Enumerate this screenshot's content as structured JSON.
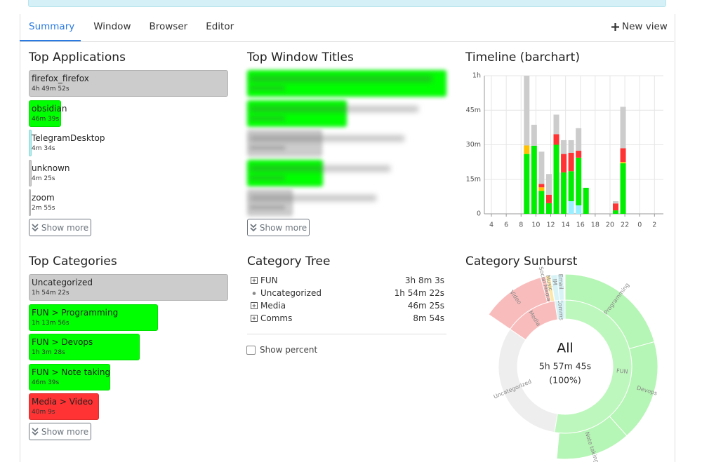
{
  "tabs": {
    "items": [
      "Summary",
      "Window",
      "Browser",
      "Editor"
    ],
    "new_view": "New view"
  },
  "top_applications": {
    "title": "Top Applications",
    "items": [
      {
        "name": "firefox_firefox",
        "duration": "4h 49m 52s",
        "minutes": 289.87,
        "color": "#cccccc"
      },
      {
        "name": "obsidian",
        "duration": "46m 39s",
        "minutes": 46.65,
        "color": "#00ff00"
      },
      {
        "name": "TelegramDesktop",
        "duration": "4m 34s",
        "minutes": 4.57,
        "color": "#aaf0f0"
      },
      {
        "name": "unknown",
        "duration": "4m 25s",
        "minutes": 4.42,
        "color": "#cccccc"
      },
      {
        "name": "zoom",
        "duration": "2m 55s",
        "minutes": 2.92,
        "color": "#cccccc"
      }
    ],
    "show_more": "Show more"
  },
  "top_window_titles": {
    "title": "Top Window Titles",
    "items": [
      {
        "minutes": 60,
        "color": "#00ff00"
      },
      {
        "minutes": 30,
        "color": "#00ff00"
      },
      {
        "minutes": 22.6,
        "color": "#cccccc"
      },
      {
        "minutes": 22.8,
        "color": "#00ff00"
      },
      {
        "minutes": 13.7,
        "color": "#cccccc"
      }
    ],
    "show_more": "Show more"
  },
  "timeline": {
    "title": "Timeline (barchart)",
    "chart_data": {
      "type": "stacked-bar",
      "x": [
        8,
        9,
        10,
        11,
        12,
        13,
        14,
        15,
        16,
        20,
        21
      ],
      "series": [
        {
          "color": "#99eeff",
          "values": [
            0,
            0,
            0,
            0,
            0,
            0,
            5.5,
            3.7,
            0,
            0,
            0
          ]
        },
        {
          "color": "#00ee00",
          "values": [
            26,
            29.6,
            10,
            4.6,
            30,
            18,
            13,
            20.7,
            11.3,
            1.5,
            22
          ]
        },
        {
          "color": "#ffc000",
          "values": [
            3.7,
            0,
            1.5,
            0,
            0,
            0,
            0,
            0,
            0,
            0,
            0.5
          ]
        },
        {
          "color": "#ff3333",
          "values": [
            0,
            0,
            1.5,
            3.7,
            4.6,
            8,
            8,
            3,
            0,
            3,
            6
          ]
        },
        {
          "color": "#cccccc",
          "values": [
            30.3,
            9.1,
            14,
            9,
            8.5,
            6,
            5.5,
            9.8,
            0,
            1,
            18
          ]
        }
      ],
      "ylim": [
        0,
        60
      ],
      "yticks": [
        0,
        {
          "value": 15,
          "label": "15m"
        },
        {
          "value": 30,
          "label": "30m"
        },
        {
          "value": 45,
          "label": "45m"
        },
        {
          "value": 60,
          "label": "1h"
        }
      ],
      "xlim": [
        3.05,
        27.2
      ],
      "xticks": [
        4,
        6,
        8,
        10,
        12,
        14,
        16,
        18,
        20,
        22,
        {
          "value": 24,
          "label": "0"
        },
        {
          "value": 26,
          "label": "2"
        }
      ],
      "grid": true
    }
  },
  "top_categories": {
    "title": "Top Categories",
    "items": [
      {
        "name": "Uncategorized",
        "duration": "1h 54m 22s",
        "minutes": 114.37,
        "color": "#cccccc"
      },
      {
        "name": "FUN > Programming",
        "duration": "1h 13m 56s",
        "minutes": 73.93,
        "color": "#00ff00"
      },
      {
        "name": "FUN > Devops",
        "duration": "1h 3m 28s",
        "minutes": 63.47,
        "color": "#00ff00"
      },
      {
        "name": "FUN > Note taking",
        "duration": "46m 39s",
        "minutes": 46.65,
        "color": "#00ff00"
      },
      {
        "name": "Media > Video",
        "duration": "40m 9s",
        "minutes": 40.15,
        "color": "#ff3333"
      }
    ],
    "show_more": "Show more"
  },
  "category_tree": {
    "title": "Category Tree",
    "items": [
      {
        "name": "FUN",
        "duration": "3h 8m 3s",
        "expandable": true
      },
      {
        "name": "Uncategorized",
        "duration": "1h 54m 22s",
        "expandable": false
      },
      {
        "name": "Media",
        "duration": "46m 25s",
        "expandable": true
      },
      {
        "name": "Comms",
        "duration": "8m 54s",
        "expandable": true
      }
    ],
    "show_percent": "Show percent"
  },
  "category_sunburst": {
    "title": "Category Sunburst",
    "center": {
      "label": "All",
      "duration": "5h 57m 45s",
      "percent": "(100%)"
    },
    "chart_data": {
      "type": "sunburst",
      "inner": [
        {
          "label": "FUN",
          "value": 188.05,
          "color": "#bdf7bd"
        },
        {
          "label": "Uncategorized",
          "value": 114.37,
          "color": "#eeeeee"
        },
        {
          "label": "Media",
          "value": 46.42,
          "color": "#f9bcbc"
        },
        {
          "label": "Comms",
          "value": 8.9,
          "color": "#d7f3f6"
        }
      ],
      "outer": [
        {
          "label": "Programming",
          "value": 73.93,
          "parent": 0,
          "color": "#b5f5b5"
        },
        {
          "label": "Devops",
          "value": 63.47,
          "parent": 0,
          "color": "#b5f5b5"
        },
        {
          "label": "Note taking",
          "value": 46.65,
          "parent": 0,
          "color": "#b5f5b5"
        },
        {
          "label": "Video",
          "value": 40.15,
          "parent": 2,
          "color": "#f9bcbc"
        },
        {
          "label": "Social Media",
          "value": 3,
          "parent": 2,
          "color": "#f9bcbc"
        },
        {
          "label": "Music",
          "value": 3,
          "parent": 2,
          "color": "#fce7a8"
        },
        {
          "label": "IM",
          "value": 4,
          "parent": 3,
          "color": "#d7f3f6"
        },
        {
          "label": "Email",
          "value": 4,
          "parent": 3,
          "color": "#d7f3f6"
        }
      ]
    }
  }
}
